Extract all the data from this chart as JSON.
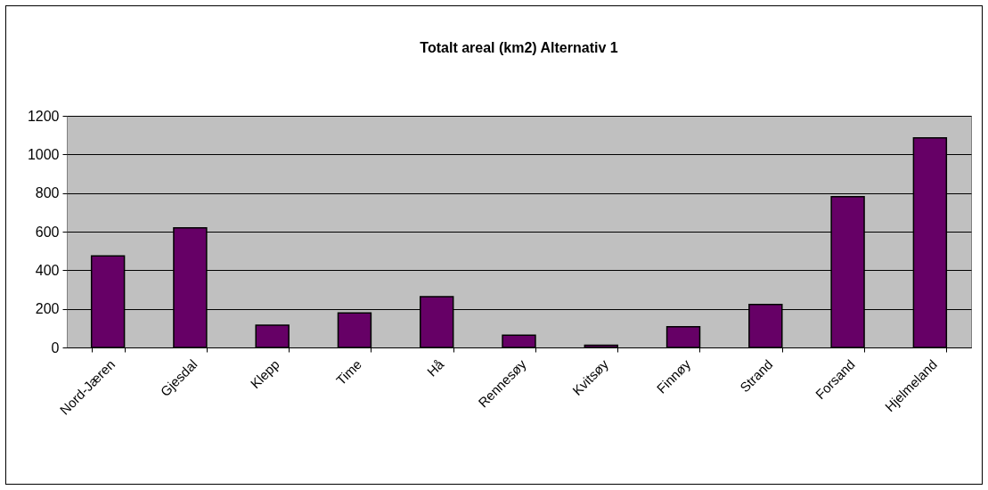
{
  "chart_data": {
    "type": "bar",
    "title": "Totalt areal (km2)  Alternativ 1",
    "categories": [
      "Nord-Jæren",
      "Gjesdal",
      "Klepp",
      "Time",
      "Hå",
      "Rennesøy",
      "Kvitsøy",
      "Finnøy",
      "Strand",
      "Forsand",
      "Hjelmeland"
    ],
    "values": [
      474,
      620,
      115,
      179,
      263,
      64,
      11,
      107,
      223,
      781,
      1086
    ],
    "color": "#660066",
    "ylim": [
      0,
      1200
    ],
    "yticks": [
      0,
      200,
      400,
      600,
      800,
      1000,
      1200
    ],
    "grid": "y"
  }
}
